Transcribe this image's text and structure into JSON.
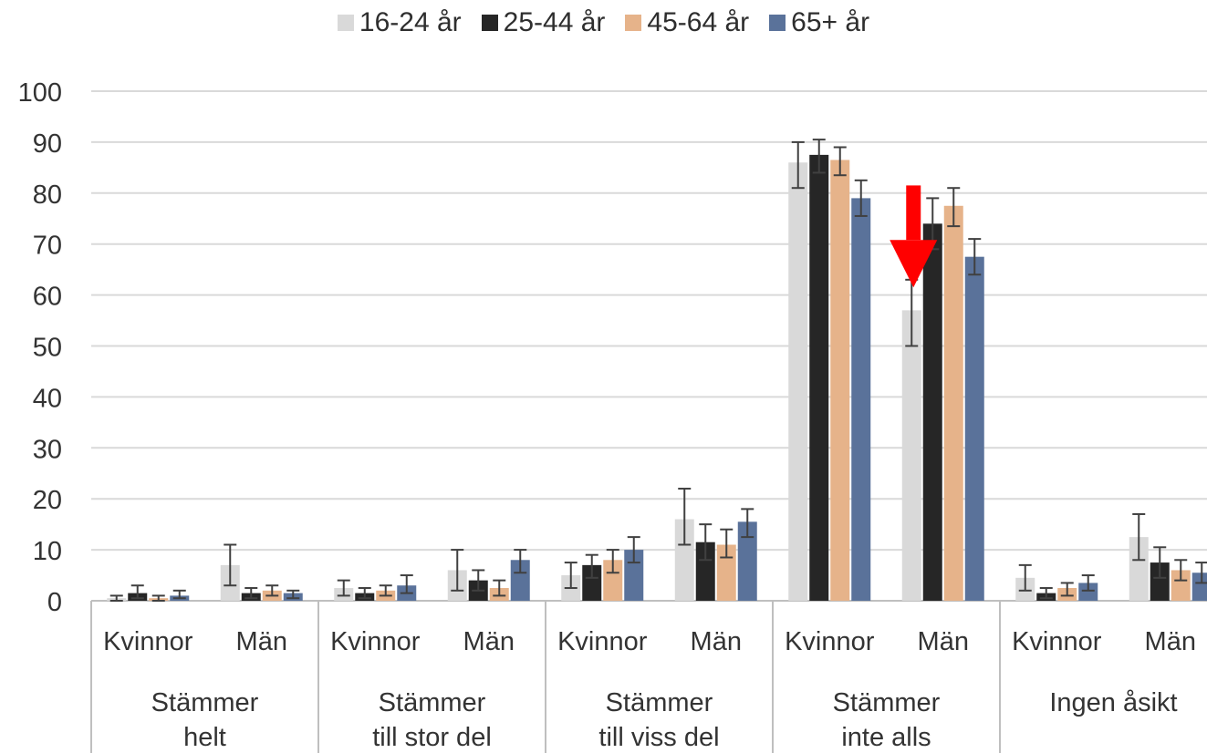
{
  "chart_data": {
    "type": "bar",
    "ylim": [
      0,
      100
    ],
    "yticks": [
      "0",
      "10",
      "20",
      "30",
      "40",
      "50",
      "60",
      "70",
      "80",
      "90",
      "100"
    ],
    "grid": true,
    "legend_position": "top",
    "groups": [
      {
        "label": "Stämmer helt",
        "label_lines": [
          "Stämmer",
          "helt"
        ]
      },
      {
        "label": "Stämmer till stor del",
        "label_lines": [
          "Stämmer",
          "till stor del"
        ]
      },
      {
        "label": "Stämmer till viss del",
        "label_lines": [
          "Stämmer",
          "till viss del"
        ]
      },
      {
        "label": "Stämmer inte alls",
        "label_lines": [
          "Stämmer",
          "inte alls"
        ]
      },
      {
        "label": "Ingen åsikt",
        "label_lines": [
          "Ingen åsikt"
        ]
      }
    ],
    "subgroups": [
      "Kvinnor",
      "Män"
    ],
    "series": [
      {
        "name": "16-24 år",
        "color": "#d9d9d9",
        "values": [
          0.5,
          7,
          2.5,
          6,
          5,
          16,
          86,
          57,
          4.5,
          12.5
        ],
        "error": [
          [
            0,
            1
          ],
          [
            3,
            11
          ],
          [
            1,
            4
          ],
          [
            2,
            10
          ],
          [
            2.5,
            7.5
          ],
          [
            11,
            22
          ],
          [
            81,
            90
          ],
          [
            50,
            63
          ],
          [
            2,
            7
          ],
          [
            8,
            17
          ]
        ]
      },
      {
        "name": "25-44 år",
        "color": "#262626",
        "values": [
          1.5,
          1.5,
          1.5,
          4,
          7,
          11.5,
          87.5,
          74,
          1.5,
          7.5
        ],
        "error": [
          [
            0.5,
            3
          ],
          [
            0.5,
            2.5
          ],
          [
            0.5,
            2.5
          ],
          [
            2,
            6
          ],
          [
            4.5,
            9
          ],
          [
            8,
            15
          ],
          [
            84,
            90.5
          ],
          [
            69,
            79
          ],
          [
            0.5,
            2.5
          ],
          [
            4.5,
            10.5
          ]
        ]
      },
      {
        "name": "45-64 år",
        "color": "#e6b38a",
        "values": [
          0.5,
          2,
          2,
          2.5,
          8,
          11,
          86.5,
          77.5,
          2.5,
          6
        ],
        "error": [
          [
            0,
            1
          ],
          [
            1,
            3
          ],
          [
            1,
            3
          ],
          [
            1,
            4
          ],
          [
            5.5,
            10
          ],
          [
            8.5,
            14
          ],
          [
            83.5,
            89
          ],
          [
            73.5,
            81
          ],
          [
            1,
            3.5
          ],
          [
            4,
            8
          ]
        ]
      },
      {
        "name": "65+ år",
        "color": "#5a729a",
        "values": [
          1,
          1.5,
          3,
          8,
          10,
          15.5,
          79,
          67.5,
          3.5,
          5.5
        ],
        "error": [
          [
            0.5,
            2
          ],
          [
            0.5,
            2
          ],
          [
            1.5,
            5
          ],
          [
            5.5,
            10
          ],
          [
            7.5,
            12.5
          ],
          [
            12.5,
            18
          ],
          [
            75.5,
            82.5
          ],
          [
            64,
            71
          ],
          [
            2,
            5
          ],
          [
            3.5,
            7.5
          ]
        ]
      }
    ],
    "annotation": {
      "type": "arrow",
      "color": "#ff0000",
      "points_to": {
        "group": "Stämmer inte alls",
        "subgroup": "Män",
        "series": "16-24 år"
      }
    }
  }
}
